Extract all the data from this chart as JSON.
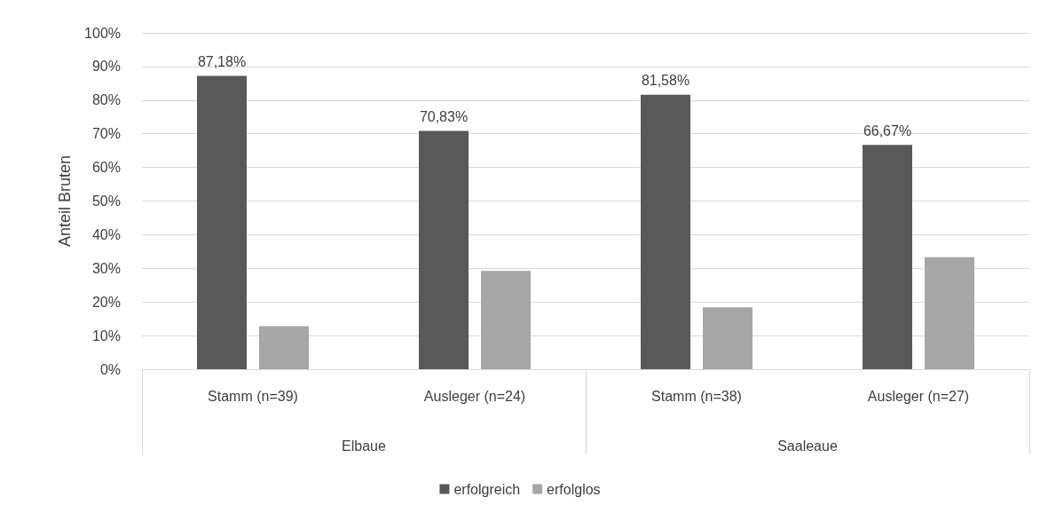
{
  "chart_data": {
    "type": "bar",
    "ylabel": "Anteil Bruten",
    "categories": [
      "Stamm (n=39)",
      "Ausleger (n=24)",
      "Stamm (n=38)",
      "Ausleger (n=27)"
    ],
    "annotations": [
      "Elbaue",
      "Saaleaue"
    ],
    "series": [
      {
        "name": "erfolgreich",
        "color": "#595959",
        "values": [
          87.18,
          70.83,
          81.58,
          66.67
        ],
        "value_labels": [
          "87,18%",
          "70,83%",
          "81,58%",
          "66,67%"
        ]
      },
      {
        "name": "erfolglos",
        "color": "#a6a6a6",
        "values": [
          12.8,
          29.2,
          18.4,
          33.3
        ]
      }
    ],
    "ylim": [
      0,
      100
    ],
    "yticks": [
      {
        "value": 0,
        "label": "0%"
      },
      {
        "value": 10,
        "label": "10%"
      },
      {
        "value": 20,
        "label": "20%"
      },
      {
        "value": 30,
        "label": "30%"
      },
      {
        "value": 40,
        "label": "40%"
      },
      {
        "value": 50,
        "label": "50%"
      },
      {
        "value": 60,
        "label": "60%"
      },
      {
        "value": 70,
        "label": "70%"
      },
      {
        "value": 80,
        "label": "80%"
      },
      {
        "value": 90,
        "label": "90%"
      },
      {
        "value": 100,
        "label": "100%"
      }
    ],
    "grid": "y",
    "legend": "bottom"
  }
}
